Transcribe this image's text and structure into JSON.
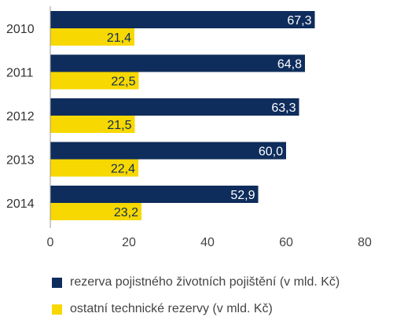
{
  "chart_data": {
    "type": "bar",
    "orientation": "horizontal",
    "categories": [
      "2010",
      "2011",
      "2012",
      "2013",
      "2014"
    ],
    "series": [
      {
        "name": "rezerva pojistného životních pojištění (v mld. Kč)",
        "values": [
          67.3,
          64.8,
          63.3,
          60.0,
          52.9
        ],
        "labels": [
          "67,3",
          "64,8",
          "63,3",
          "60,0",
          "52,9"
        ],
        "color": "#0f2d5c",
        "label_color": "#ffffff"
      },
      {
        "name": "ostatní technické rezervy (v mld. Kč)",
        "values": [
          21.4,
          22.5,
          21.5,
          22.4,
          23.2
        ],
        "labels": [
          "21,4",
          "22,5",
          "21,5",
          "22,4",
          "23,2"
        ],
        "color": "#f7d800",
        "label_color": "#0f2d5c"
      }
    ],
    "xlim": [
      0,
      80
    ],
    "xticks": [
      "0",
      "20",
      "40",
      "60",
      "80"
    ],
    "title": "",
    "xlabel": "",
    "ylabel": "",
    "grid": false,
    "legend_position": "bottom"
  }
}
